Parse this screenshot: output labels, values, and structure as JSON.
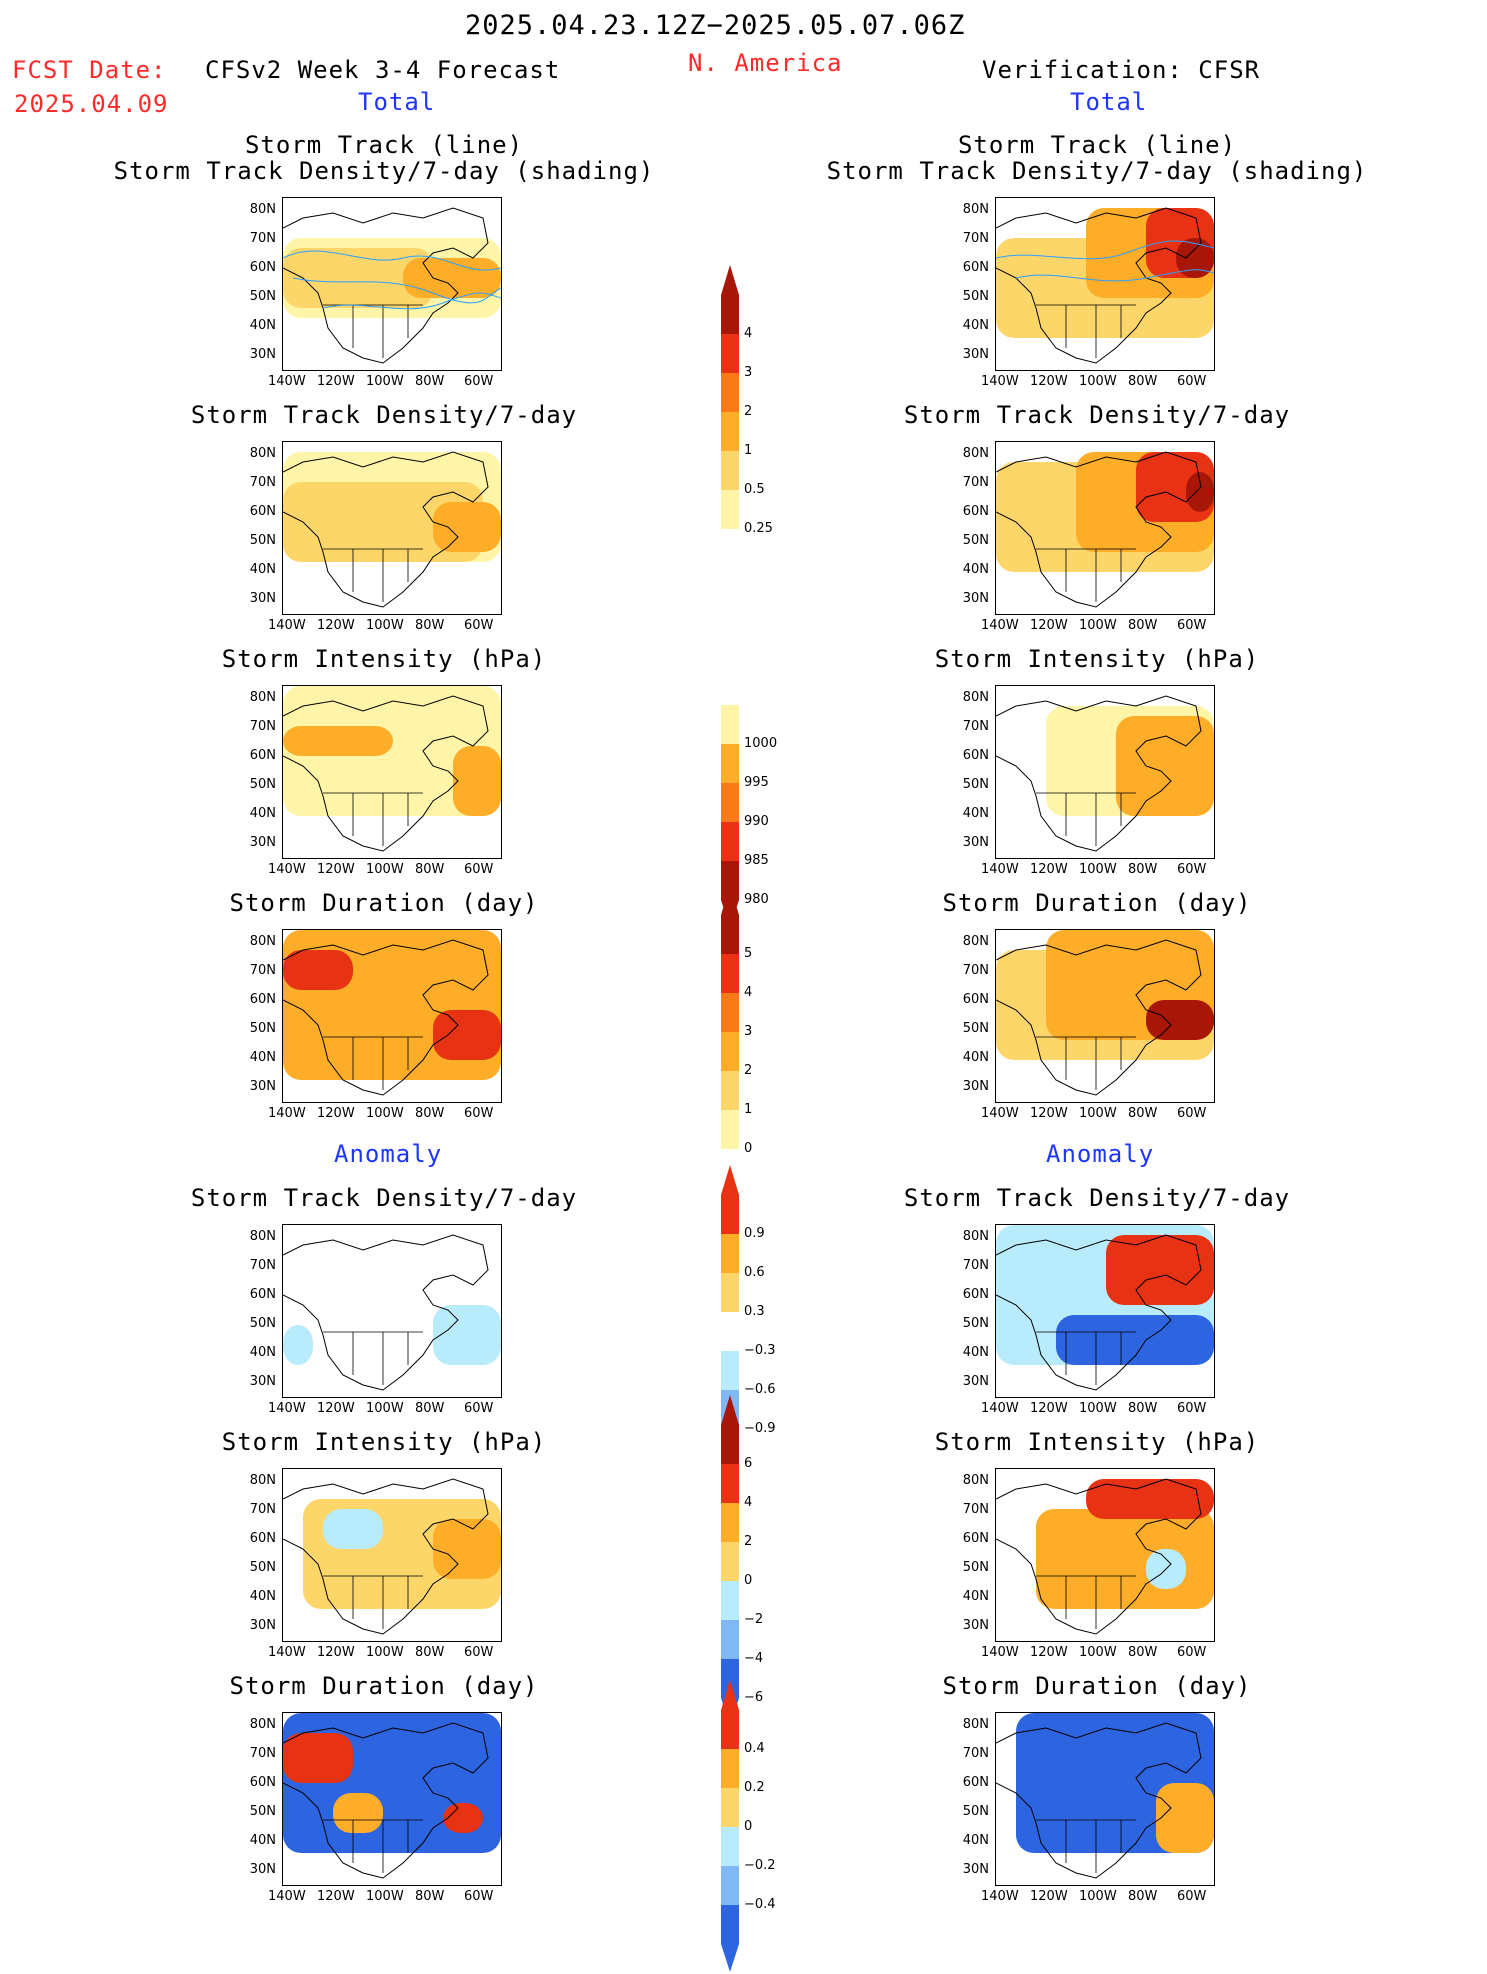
{
  "header": {
    "period": "2025.04.23.12Z−2025.05.07.06Z",
    "fcst_label": "FCST Date:",
    "fcst_date": "2025.04.09",
    "model": "CFSv2 Week 3-4 Forecast",
    "region": "N. America",
    "verification": "Verification: CFSR"
  },
  "sections": {
    "total_left": "Total",
    "total_right": "Total",
    "anomaly_left": "Anomaly",
    "anomaly_right": "Anomaly"
  },
  "panel_titles": {
    "track_line": "Storm Track (line)",
    "track_shading": "Storm Track Density/7-day (shading)",
    "density": "Storm Track Density/7-day",
    "intensity": "Storm Intensity (hPa)",
    "duration": "Storm Duration (day)"
  },
  "axes": {
    "lat_ticks": [
      "80N",
      "70N",
      "60N",
      "50N",
      "40N",
      "30N"
    ],
    "lon_ticks": [
      "140W",
      "120W",
      "100W",
      "80W",
      "60W"
    ]
  },
  "colorbars": {
    "density_total": [
      "4",
      "3",
      "2",
      "1",
      "0.5",
      "0.25"
    ],
    "intensity_total": [
      "1000",
      "995",
      "990",
      "985",
      "980"
    ],
    "duration_total": [
      "5",
      "4",
      "3",
      "2",
      "1",
      "0"
    ],
    "density_anom": [
      "0.9",
      "0.6",
      "0.3",
      "−0.3",
      "−0.6",
      "−0.9"
    ],
    "intensity_anom": [
      "6",
      "4",
      "2",
      "0",
      "−2",
      "−4",
      "−6"
    ],
    "duration_anom": [
      "0.4",
      "0.2",
      "0",
      "−0.2",
      "−0.4"
    ]
  },
  "colors": {
    "title_red": "#ff2a2a",
    "title_blue": "#1e35ff",
    "track_line": "#2aa0ff",
    "lt_yellow": "#fff5a8",
    "yellow": "#fdd66a",
    "orange": "#fdad27",
    "dk_orange": "#f97a16",
    "red": "#e83214",
    "dk_red": "#a81608",
    "lt_blue": "#b8ecfc",
    "blue": "#7fb8f5",
    "dk_blue": "#2d64e0"
  }
}
